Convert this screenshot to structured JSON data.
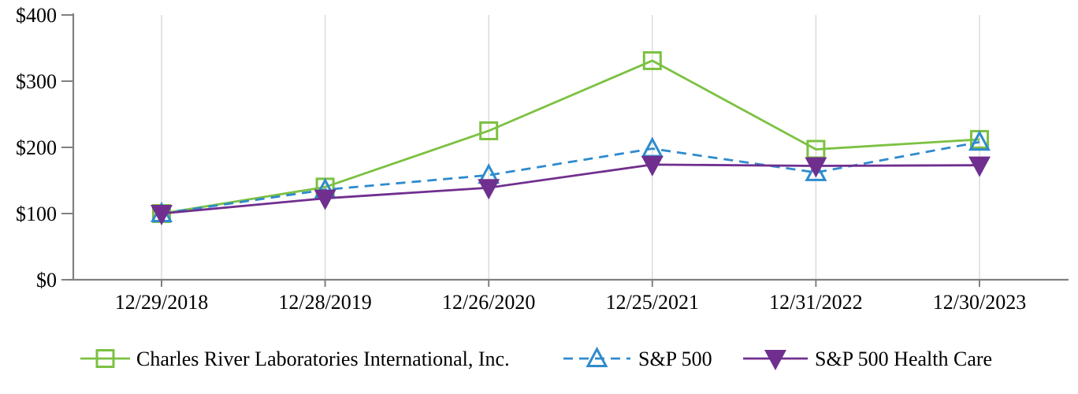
{
  "chart_data": {
    "type": "line",
    "title": "",
    "x": [
      "12/29/2018",
      "12/28/2019",
      "12/26/2020",
      "12/25/2021",
      "12/31/2022",
      "12/30/2023"
    ],
    "series": [
      {
        "name": "Charles River Laboratories International, Inc.",
        "color": "#7CC142",
        "line_style": "solid",
        "marker": "open-square",
        "values": [
          100,
          140,
          225,
          331,
          197,
          212
        ]
      },
      {
        "name": "S&P 500",
        "color": "#2E8BCD",
        "line_style": "dashed",
        "marker": "open-triangle-up",
        "values": [
          100,
          136,
          158,
          198,
          162,
          208
        ]
      },
      {
        "name": "S&P 500 Health Care",
        "color": "#702F8F",
        "line_style": "solid",
        "marker": "filled-triangle-down",
        "values": [
          100,
          123,
          139,
          174,
          172,
          173
        ]
      }
    ],
    "y_axis": {
      "ticks": [
        "$0",
        "$100",
        "$200",
        "$300",
        "$400"
      ],
      "min": 0,
      "max": 400,
      "tick_step": 100,
      "unit_prefix": "$"
    },
    "grid": {
      "vertical": true,
      "horizontal": false,
      "color": "#DBDBDB"
    },
    "axis_color": "#808080",
    "text_color": "#000000",
    "legend_position": "bottom"
  }
}
